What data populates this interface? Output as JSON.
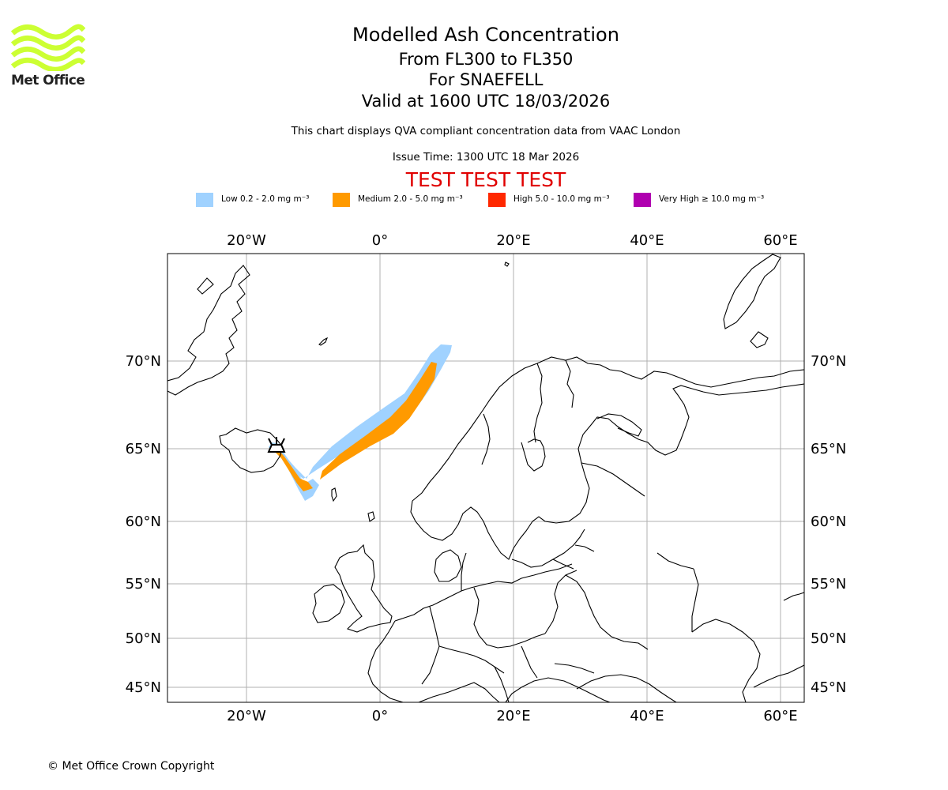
{
  "logo": {
    "text": "Met Office",
    "color": "#ccff33"
  },
  "title": {
    "line1": "Modelled Ash Concentration",
    "line2": "From FL300 to FL350",
    "line3": "For SNAEFELL",
    "line4": "Valid at 1600 UTC 18/03/2026"
  },
  "subtitle": "This chart displays QVA compliant concentration data from VAAC London",
  "issue_time": "Issue Time: 1300 UTC 18 Mar 2026",
  "test_banner": "TEST TEST TEST",
  "legend": [
    {
      "label": "Low 0.2 - 2.0 mg m⁻³",
      "color": "#a0d2ff"
    },
    {
      "label": "Medium 2.0 - 5.0 mg m⁻³",
      "color": "#ff9a00"
    },
    {
      "label": "High 5.0 - 10.0 mg m⁻³",
      "color": "#ff2800"
    },
    {
      "label": "Very High  ≥  10.0 mg m⁻³",
      "color": "#b000b0"
    }
  ],
  "map": {
    "lon_labels": [
      "20°W",
      "0°",
      "20°E",
      "40°E",
      "60°E"
    ],
    "lat_labels": [
      "70°N",
      "65°N",
      "60°N",
      "55°N",
      "50°N",
      "45°N"
    ],
    "volcano": "SNAEFELL"
  },
  "copyright": "© Met Office Crown Copyright"
}
